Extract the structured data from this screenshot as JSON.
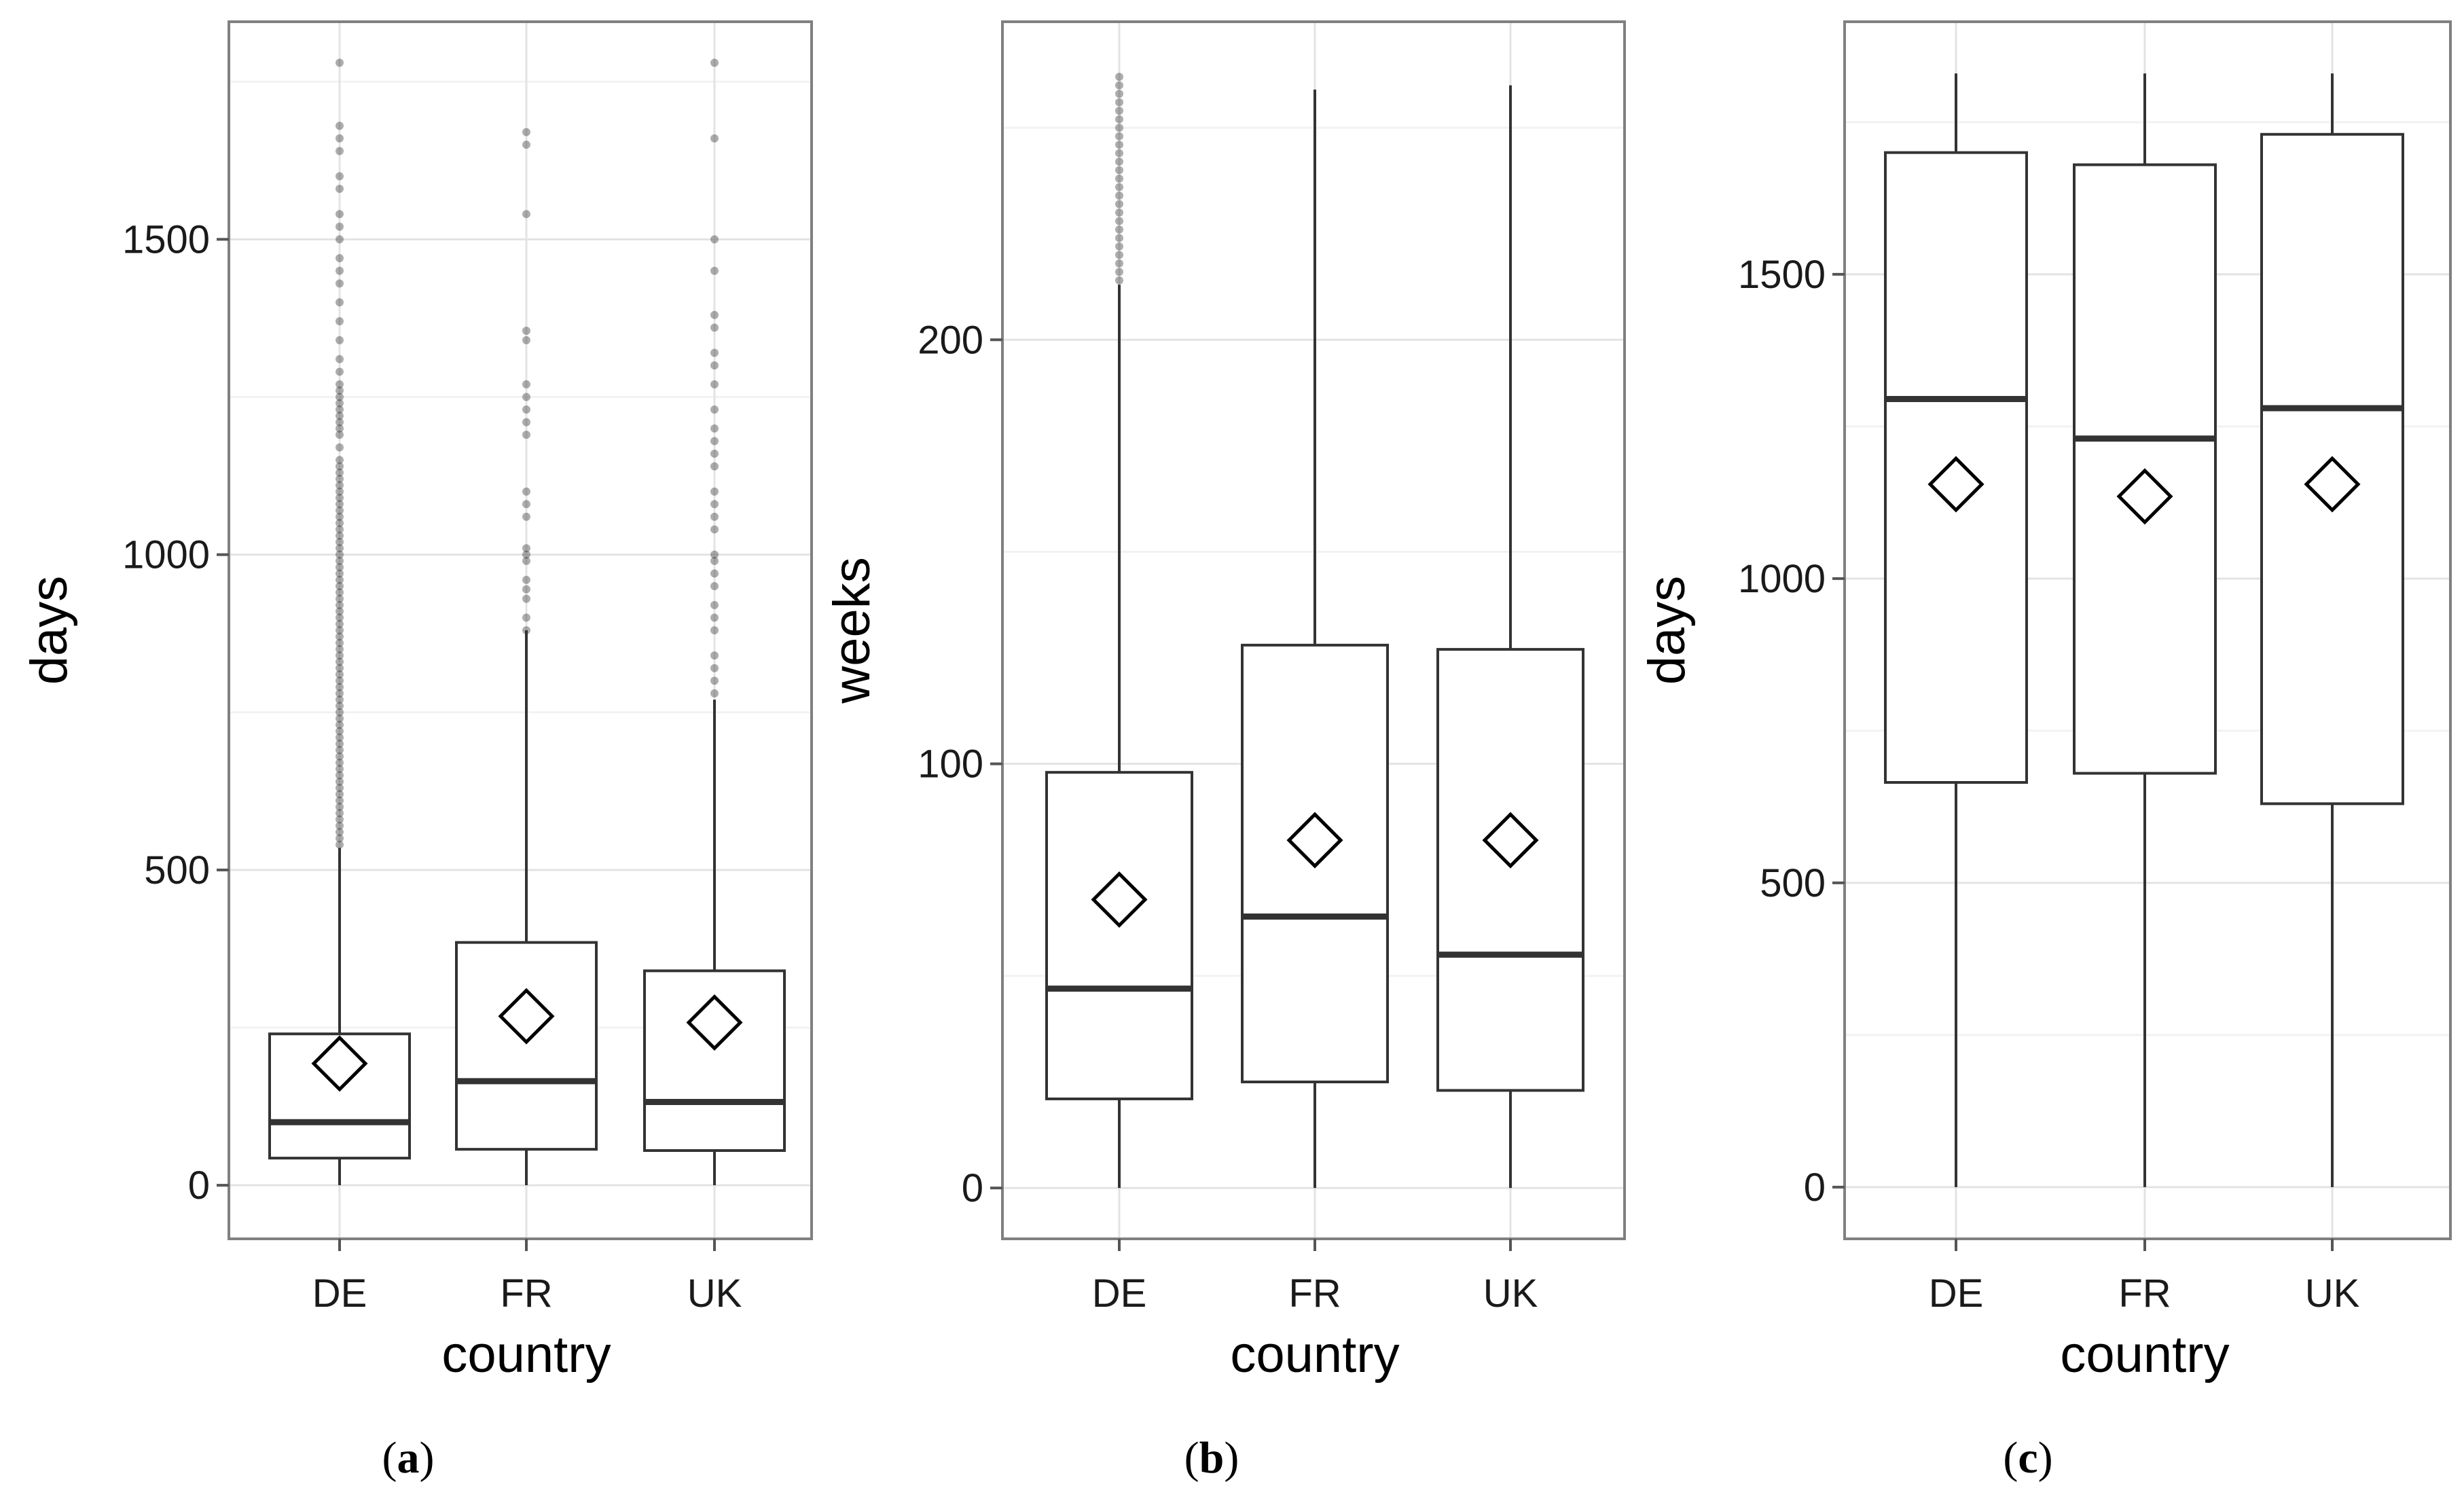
{
  "chart_data": [
    {
      "type": "box",
      "caption": "a",
      "xlabel": "country",
      "ylabel": "days",
      "categories": [
        "DE",
        "FR",
        "UK"
      ],
      "ylim": [
        -85,
        1845
      ],
      "yticks": [
        0,
        500,
        1000,
        1500
      ],
      "grid": true,
      "boxes": [
        {
          "category": "DE",
          "q1": 43,
          "median": 100,
          "q3": 240,
          "whisker_low": 0,
          "whisker_high": 535,
          "mean": 193,
          "outliers": [
            540,
            550,
            560,
            570,
            580,
            590,
            600,
            610,
            620,
            630,
            640,
            650,
            660,
            670,
            680,
            690,
            700,
            710,
            720,
            730,
            740,
            750,
            760,
            770,
            780,
            790,
            800,
            810,
            820,
            830,
            840,
            850,
            860,
            870,
            880,
            890,
            900,
            910,
            920,
            930,
            940,
            950,
            960,
            970,
            980,
            990,
            1000,
            1010,
            1020,
            1030,
            1040,
            1050,
            1060,
            1070,
            1080,
            1090,
            1100,
            1110,
            1120,
            1130,
            1140,
            1150,
            1170,
            1190,
            1200,
            1210,
            1220,
            1230,
            1240,
            1250,
            1260,
            1270,
            1290,
            1310,
            1340,
            1370,
            1400,
            1430,
            1450,
            1470,
            1500,
            1520,
            1540,
            1580,
            1600,
            1640,
            1660,
            1680,
            1780
          ]
        },
        {
          "category": "FR",
          "q1": 57,
          "median": 165,
          "q3": 385,
          "whisker_low": 0,
          "whisker_high": 880,
          "mean": 268,
          "outliers": [
            880,
            900,
            930,
            945,
            960,
            990,
            1000,
            1010,
            1060,
            1080,
            1100,
            1190,
            1210,
            1230,
            1250,
            1270,
            1340,
            1355,
            1540,
            1650,
            1670
          ]
        },
        {
          "category": "UK",
          "q1": 55,
          "median": 132,
          "q3": 340,
          "whisker_low": 0,
          "whisker_high": 770,
          "mean": 258,
          "outliers": [
            780,
            800,
            820,
            840,
            880,
            900,
            920,
            950,
            970,
            990,
            1000,
            1040,
            1060,
            1080,
            1100,
            1140,
            1160,
            1180,
            1200,
            1230,
            1270,
            1300,
            1320,
            1360,
            1380,
            1450,
            1500,
            1660,
            1780
          ]
        }
      ]
    },
    {
      "type": "box",
      "caption": "b",
      "xlabel": "country",
      "ylabel": "weeks",
      "categories": [
        "DE",
        "FR",
        "UK"
      ],
      "ylim": [
        -12,
        275
      ],
      "yticks": [
        0,
        100,
        200
      ],
      "grid": true,
      "boxes": [
        {
          "category": "DE",
          "q1": 21,
          "median": 47,
          "q3": 98,
          "whisker_low": 0,
          "whisker_high": 213,
          "mean": 68,
          "outliers": [
            214,
            216,
            218,
            220,
            222,
            224,
            226,
            228,
            230,
            232,
            234,
            236,
            238,
            240,
            242,
            244,
            246,
            248,
            250,
            252,
            254,
            256,
            258,
            260,
            262
          ]
        },
        {
          "category": "FR",
          "q1": 25,
          "median": 64,
          "q3": 128,
          "whisker_low": 0,
          "whisker_high": 259,
          "mean": 82
        },
        {
          "category": "UK",
          "q1": 23,
          "median": 55,
          "q3": 127,
          "whisker_low": 0,
          "whisker_high": 260,
          "mean": 82
        }
      ]
    },
    {
      "type": "box",
      "caption": "c",
      "xlabel": "country",
      "ylabel": "days",
      "categories": [
        "DE",
        "FR",
        "UK"
      ],
      "ylim": [
        -85,
        1915
      ],
      "yticks": [
        0,
        500,
        1000,
        1500
      ],
      "grid": true,
      "boxes": [
        {
          "category": "DE",
          "q1": 665,
          "median": 1295,
          "q3": 1700,
          "whisker_low": 0,
          "whisker_high": 1830,
          "mean": 1155
        },
        {
          "category": "FR",
          "q1": 680,
          "median": 1230,
          "q3": 1680,
          "whisker_low": 0,
          "whisker_high": 1830,
          "mean": 1135
        },
        {
          "category": "UK",
          "q1": 630,
          "median": 1280,
          "q3": 1730,
          "whisker_low": 0,
          "whisker_high": 1830,
          "mean": 1155
        }
      ]
    }
  ]
}
